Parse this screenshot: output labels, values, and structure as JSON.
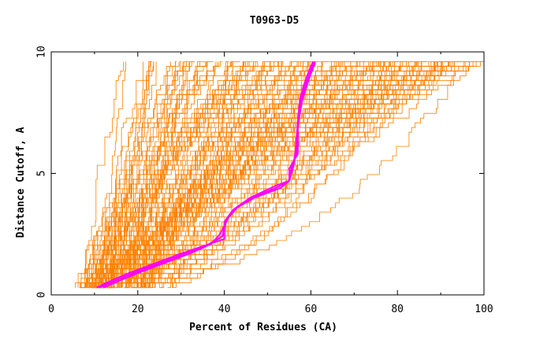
{
  "chart_data": {
    "type": "line",
    "title": "T0963-D5",
    "xlabel": "Percent of Residues (CA)",
    "ylabel": "Distance Cutoff, A",
    "xlim": [
      0,
      100
    ],
    "ylim": [
      0,
      10
    ],
    "x_ticks": [
      0,
      20,
      40,
      60,
      80,
      100
    ],
    "y_ticks": [
      0,
      5,
      10
    ],
    "x_tick_labels": [
      "0",
      "20",
      "40",
      "60",
      "80",
      "100"
    ],
    "y_tick_labels": [
      "0",
      "5",
      "10"
    ],
    "grid": false,
    "background_series_color": "#ff8000",
    "highlight_color": "#ff00ff",
    "background_series_count": 150,
    "background_shape": {
      "start_x_range": [
        4,
        32
      ],
      "start_y": 0.3,
      "end_x_range": [
        17,
        100
      ],
      "end_y": 9.6
    },
    "highlight_series": [
      {
        "x": [
          10.5,
          14,
          18,
          24,
          30,
          35,
          40,
          40,
          42,
          46,
          52,
          55,
          55,
          57,
          57,
          58,
          59,
          60,
          61
        ],
        "y": [
          0.3,
          0.6,
          0.9,
          1.3,
          1.7,
          2.0,
          2.3,
          3.0,
          3.5,
          4.0,
          4.5,
          4.7,
          5.2,
          5.8,
          7.0,
          8.0,
          8.6,
          9.1,
          9.6
        ]
      },
      {
        "x": [
          12,
          16,
          20,
          26,
          32,
          37,
          39,
          41,
          43,
          47,
          53,
          55,
          56,
          56.5,
          57,
          57.5,
          58.5,
          59.5,
          60.5
        ],
        "y": [
          0.3,
          0.6,
          0.9,
          1.3,
          1.7,
          2.1,
          2.5,
          3.2,
          3.6,
          4.0,
          4.4,
          4.7,
          5.3,
          6.0,
          7.2,
          8.1,
          8.7,
          9.2,
          9.6
        ]
      },
      {
        "x": [
          11,
          15,
          19,
          25,
          31,
          36,
          39.5,
          40.5,
          42.5,
          46.5,
          52.5,
          55,
          55.5,
          56.8,
          57,
          57.8,
          58.8,
          59.8,
          60.8
        ],
        "y": [
          0.3,
          0.6,
          0.9,
          1.3,
          1.7,
          2.05,
          2.4,
          3.1,
          3.55,
          4.0,
          4.45,
          4.7,
          5.25,
          5.9,
          7.1,
          8.05,
          8.65,
          9.15,
          9.6
        ]
      }
    ]
  }
}
